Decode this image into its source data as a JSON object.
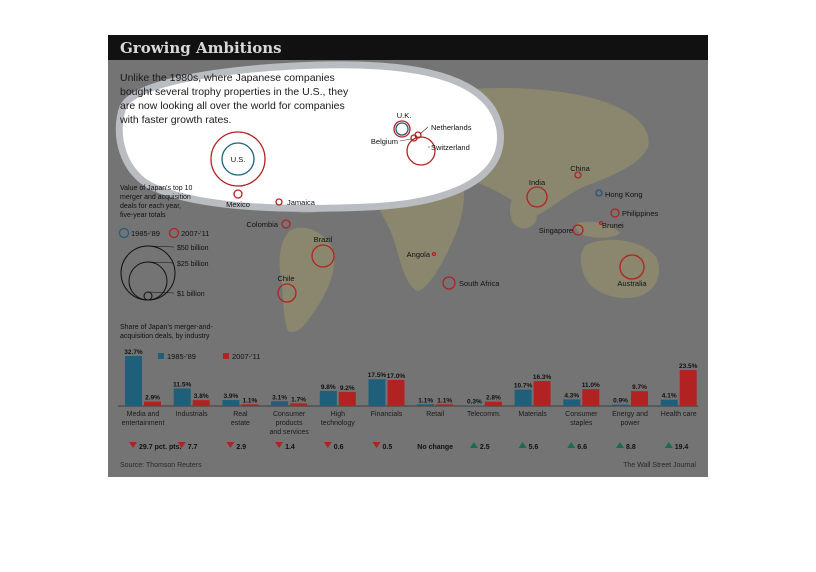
{
  "title": "Growing Ambitions",
  "intro": [
    "Unlike the 1980s, where Japanese companies",
    "bought several trophy properties in the U.S., they",
    "are now looking all over the world for companies",
    "with faster growth rates."
  ],
  "bubble_legend": {
    "heading": [
      "Value of Japan's top 10",
      "merger and acquisition",
      "deals for each year,",
      "five-year totals"
    ],
    "sizes": [
      "$50 billion",
      "$25 billion",
      "$1 billion"
    ]
  },
  "periods": [
    "1985-'89",
    "2007-'11"
  ],
  "colors": {
    "p1985": "#1f5f7a",
    "p2007": "#b22222",
    "up": "#1e6b4a",
    "down": "#b22222",
    "map_land": "#8e8a6e",
    "background": "#747474",
    "title_bar": "#111111",
    "highlight": "#ffffff"
  },
  "countries": [
    {
      "name": "U.K."
    },
    {
      "name": "Netherlands"
    },
    {
      "name": "Belgium"
    },
    {
      "name": "Switzerland"
    },
    {
      "name": "U.S."
    },
    {
      "name": "Mexico"
    },
    {
      "name": "Jamaica"
    },
    {
      "name": "Colombia"
    },
    {
      "name": "Brazil"
    },
    {
      "name": "Chile"
    },
    {
      "name": "Angola"
    },
    {
      "name": "South Africa"
    },
    {
      "name": "India"
    },
    {
      "name": "China"
    },
    {
      "name": "Hong Kong"
    },
    {
      "name": "Philippines"
    },
    {
      "name": "Brunei"
    },
    {
      "name": "Singapore"
    },
    {
      "name": "Australia"
    }
  ],
  "chart_heading": [
    "Share of Japan's merger-and-",
    "acquisition deals, by industry"
  ],
  "chart_data": {
    "type": "bar",
    "categories": [
      [
        "Media and",
        "entertainment"
      ],
      [
        "Industrials"
      ],
      [
        "Real",
        "estate"
      ],
      [
        "Consumer",
        "products",
        "and services"
      ],
      [
        "High",
        "technology"
      ],
      [
        "Financials"
      ],
      [
        "Retail"
      ],
      [
        "Telecomm."
      ],
      [
        "Materials"
      ],
      [
        "Consumer",
        "staples"
      ],
      [
        "Energy and",
        "power"
      ],
      [
        "Health care"
      ]
    ],
    "series": [
      {
        "name": "1985-'89",
        "values": [
          32.7,
          11.5,
          3.9,
          3.1,
          9.8,
          17.5,
          1.1,
          0.3,
          10.7,
          4.3,
          0.9,
          4.1
        ]
      },
      {
        "name": "2007-'11",
        "values": [
          2.9,
          3.8,
          1.1,
          1.7,
          9.2,
          17.0,
          1.1,
          2.8,
          16.3,
          11.0,
          9.7,
          23.5
        ]
      }
    ],
    "value_labels": [
      [
        "32.7%",
        "11.5%",
        "3.9%",
        "3.1%",
        "9.8%",
        "17.5%",
        "1.1%",
        "0.3%",
        "10.7%",
        "4.3%",
        "0.9%",
        "4.1%"
      ],
      [
        "2.9%",
        "3.8%",
        "1.1%",
        "1.7%",
        "9.2%",
        "17.0%",
        "1.1%",
        "2.8%",
        "16.3%",
        "11.0%",
        "9.7%",
        "23.5%"
      ]
    ],
    "changes": [
      {
        "dir": "down",
        "label": "29.7 pct. pts."
      },
      {
        "dir": "down",
        "label": "7.7"
      },
      {
        "dir": "down",
        "label": "2.9"
      },
      {
        "dir": "down",
        "label": "1.4"
      },
      {
        "dir": "down",
        "label": "0.6"
      },
      {
        "dir": "down",
        "label": "0.5"
      },
      {
        "dir": "none",
        "label": "No change"
      },
      {
        "dir": "up",
        "label": "2.5"
      },
      {
        "dir": "up",
        "label": "5.6"
      },
      {
        "dir": "up",
        "label": "6.6"
      },
      {
        "dir": "up",
        "label": "8.8"
      },
      {
        "dir": "up",
        "label": "19.4"
      }
    ],
    "ylim": [
      0,
      35
    ]
  },
  "source": "Source: Thomson Reuters",
  "credit": "The Wall Street Journal"
}
